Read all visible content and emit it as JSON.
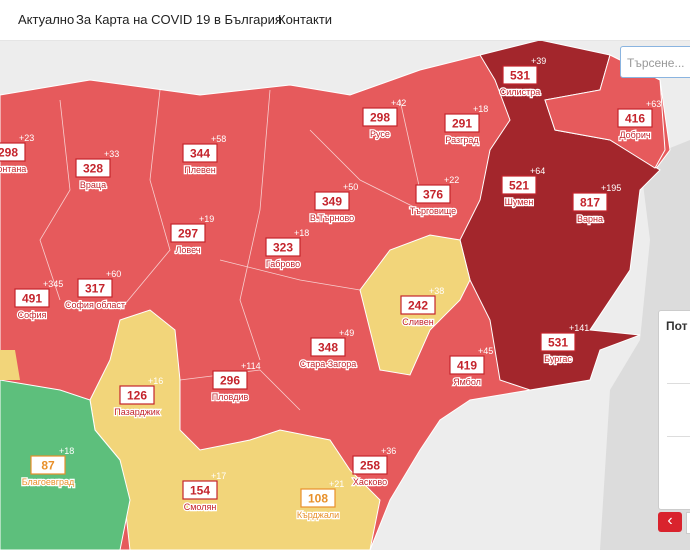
{
  "nav": [
    "Актуално",
    "За Карта на COVID 19 в България",
    "Контакти"
  ],
  "search_placeholder": "Търсене...",
  "panel_title": "Пот",
  "regions": [
    {
      "name": "Монтана",
      "value": 298,
      "delta": "+23",
      "color": "#c4242c"
    },
    {
      "name": "Враца",
      "value": 328,
      "delta": "+33",
      "color": "#c4242c"
    },
    {
      "name": "Плевен",
      "value": 344,
      "delta": "+58",
      "color": "#c4242c"
    },
    {
      "name": "Русе",
      "value": 298,
      "delta": "+42",
      "color": "#c4242c"
    },
    {
      "name": "Разград",
      "value": 291,
      "delta": "+18",
      "color": "#c4242c"
    },
    {
      "name": "Силистра",
      "value": 531,
      "delta": "+39",
      "color": "#c4242c"
    },
    {
      "name": "Добрич",
      "value": 416,
      "delta": "+63",
      "color": "#c4242c"
    },
    {
      "name": "Шумен",
      "value": 521,
      "delta": "+64",
      "color": "#c4242c"
    },
    {
      "name": "Варна",
      "value": 817,
      "delta": "+195",
      "color": "#c4242c"
    },
    {
      "name": "Търговище",
      "value": 376,
      "delta": "+22",
      "color": "#c4242c"
    },
    {
      "name": "В.Търново",
      "value": 349,
      "delta": "+50",
      "color": "#c4242c"
    },
    {
      "name": "Ловеч",
      "value": 297,
      "delta": "+19",
      "color": "#c4242c"
    },
    {
      "name": "Габрово",
      "value": 323,
      "delta": "+18",
      "color": "#c4242c"
    },
    {
      "name": "София",
      "value": 491,
      "delta": "+345",
      "color": "#c4242c"
    },
    {
      "name": "София област",
      "value": 317,
      "delta": "+60",
      "color": "#c4242c"
    },
    {
      "name": "Сливен",
      "value": 242,
      "delta": "+38",
      "color": "#c4242c"
    },
    {
      "name": "Бургас",
      "value": 531,
      "delta": "+141",
      "color": "#c4242c"
    },
    {
      "name": "Стара Загора",
      "value": 348,
      "delta": "+49",
      "color": "#c4242c"
    },
    {
      "name": "Ямбол",
      "value": 419,
      "delta": "+45",
      "color": "#c4242c"
    },
    {
      "name": "Пазарджик",
      "value": 126,
      "delta": "+16",
      "color": "#c4242c"
    },
    {
      "name": "Пловдив",
      "value": 296,
      "delta": "+114",
      "color": "#c4242c"
    },
    {
      "name": "Хасково",
      "value": 258,
      "delta": "+36",
      "color": "#c4242c"
    },
    {
      "name": "Благоевград",
      "value": 87,
      "delta": "+18",
      "color": "#e8902a"
    },
    {
      "name": "Смолян",
      "value": 154,
      "delta": "+17",
      "color": "#c4242c"
    },
    {
      "name": "Кърджали",
      "value": 108,
      "delta": "+21",
      "color": "#e8902a"
    }
  ]
}
